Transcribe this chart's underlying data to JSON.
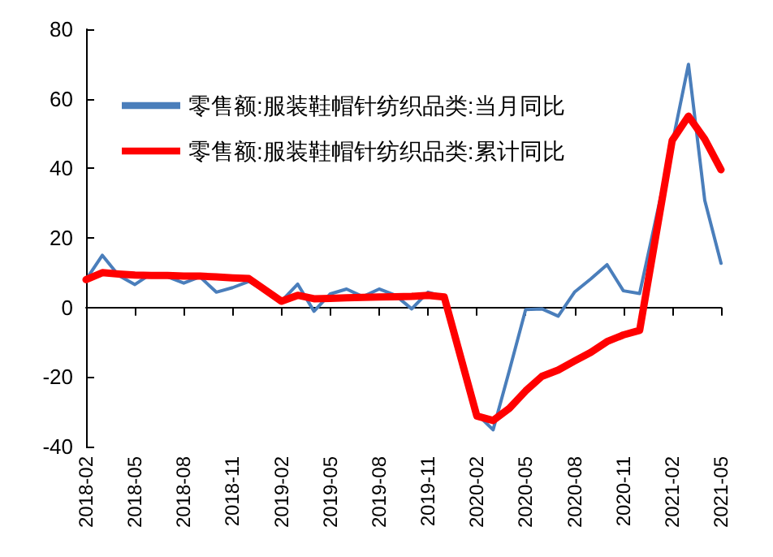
{
  "chart_data": {
    "type": "line",
    "categories": [
      "2018-02",
      null,
      null,
      "2018-05",
      null,
      null,
      "2018-08",
      null,
      null,
      "2018-11",
      null,
      null,
      "2019-02",
      null,
      null,
      "2019-05",
      null,
      null,
      "2019-08",
      null,
      null,
      "2019-11",
      null,
      null,
      "2020-02",
      null,
      null,
      "2020-05",
      null,
      null,
      "2020-08",
      null,
      null,
      "2020-11",
      null,
      null,
      "2021-02",
      null,
      null,
      "2021-05"
    ],
    "series": [
      {
        "name": "零售额:服装鞋帽针纺织品类:当月同比",
        "color": "#4a7ebb",
        "values": [
          8,
          15,
          9.2,
          6.6,
          9.7,
          8.8,
          7,
          8.8,
          4.4,
          5.7,
          7.5,
          null,
          1.8,
          6.7,
          -1.1,
          3.9,
          5.3,
          3.1,
          5.3,
          3.5,
          -0.4,
          4.4,
          3.1,
          null,
          -30.6,
          -35.2,
          -18.1,
          -0.6,
          -0.4,
          -2.5,
          4.4,
          8.2,
          12.3,
          4.8,
          4,
          null,
          47,
          69.9,
          30.8,
          12.7
        ]
      },
      {
        "name": "零售额:服装鞋帽针纺织品类:累计同比",
        "color": "#ff0000",
        "values": [
          8,
          10,
          9.6,
          9.3,
          9.2,
          9.2,
          9,
          9,
          8.8,
          8.5,
          8.3,
          null,
          1.8,
          3.5,
          2.5,
          2.6,
          2.8,
          2.9,
          3,
          3.1,
          3.2,
          3.5,
          3,
          null,
          -31.2,
          -32.5,
          -29,
          -24,
          -19.8,
          -18,
          -15.4,
          -12.9,
          -9.8,
          -7.9,
          -6.6,
          null,
          48,
          55,
          48.4,
          39.6
        ]
      }
    ],
    "ylim": [
      -40,
      80
    ],
    "yticks": [
      -40,
      -20,
      0,
      20,
      40,
      60,
      80
    ],
    "legend": "top left",
    "marker": "none",
    "line_style": "solid"
  }
}
